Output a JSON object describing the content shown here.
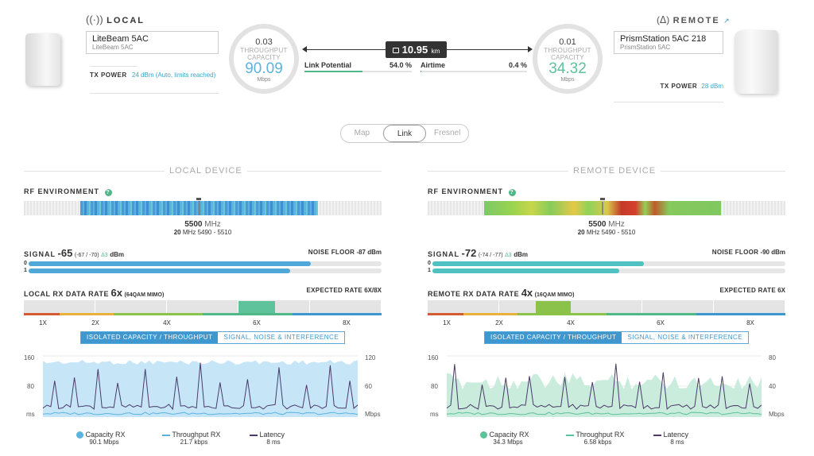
{
  "local": {
    "heading": "LOCAL",
    "device_name": "LiteBeam 5AC",
    "device_model": "LiteBeam 5AC",
    "tx_power_label": "TX POWER",
    "tx_power_value": "24 dBm (Auto, limits reached)"
  },
  "remote": {
    "heading": "REMOTE",
    "device_name": "PrismStation 5AC 218",
    "device_model": "PrismStation 5AC",
    "tx_power_label": "TX POWER",
    "tx_power_value": "28 dBm"
  },
  "gauges": {
    "local": {
      "throughput": "0.03",
      "caption1": "THROUGHPUT",
      "caption2": "CAPACITY",
      "capacity": "90.09",
      "unit": "Mbps"
    },
    "remote": {
      "throughput": "0.01",
      "caption1": "THROUGHPUT",
      "caption2": "CAPACITY",
      "capacity": "34.32",
      "unit": "Mbps"
    }
  },
  "link": {
    "distance": "10.95",
    "distance_unit": "km",
    "potential_label": "Link Potential",
    "potential_value": "54.0",
    "airtime_label": "Airtime",
    "airtime_value": "0.4",
    "percent": "%",
    "potential_fraction": 0.54,
    "airtime_fraction": 0.004
  },
  "tabs": [
    "Map",
    "Link",
    "Fresnel"
  ],
  "panels": {
    "local": {
      "title": "LOCAL DEVICE",
      "rf_label": "RF ENVIRONMENT",
      "freq": "5500",
      "freq_unit": "MHz",
      "width": "20",
      "width_unit": "MHz",
      "range": "5490 - 5510",
      "signal_label": "SIGNAL",
      "signal_value": "-65",
      "signal_chains": "(-67 / -70)",
      "signal_delta": "Δ3",
      "dbm": "dBm",
      "noise_label": "NOISE FLOOR",
      "noise_value": "-87 dBm",
      "chain0_fraction": 0.8,
      "chain1_fraction": 0.74,
      "rx_label": "LOCAL RX DATA RATE",
      "rx_value": "6x",
      "rx_mod": "(64QAM MIMO)",
      "expected_label": "EXPECTED RATE",
      "expected_value": "6X/8X",
      "rate_labels": [
        "1X",
        "2X",
        "4X",
        "6X",
        "8X"
      ],
      "toggle_a": "ISOLATED CAPACITY / THROUGHPUT",
      "toggle_b": "SIGNAL, NOISE & INTERFERENCE",
      "y_left": [
        "160",
        "80",
        "ms"
      ],
      "y_right": [
        "120",
        "60",
        "Mbps"
      ],
      "legend": [
        {
          "name": "Capacity RX",
          "value": "90.1 Mbps"
        },
        {
          "name": "Throughput RX",
          "value": "21.7 kbps"
        },
        {
          "name": "Latency",
          "value": "8 ms"
        }
      ],
      "accent": "#5bb3e0",
      "area": "#c6e6f7"
    },
    "remote": {
      "title": "REMOTE DEVICE",
      "rf_label": "RF ENVIRONMENT",
      "freq": "5500",
      "freq_unit": "MHz",
      "width": "20",
      "width_unit": "MHz",
      "range": "5490 - 5510",
      "signal_label": "SIGNAL",
      "signal_value": "-72",
      "signal_chains": "(-74 / -77)",
      "signal_delta": "Δ3",
      "dbm": "dBm",
      "noise_label": "NOISE FLOOR",
      "noise_value": "-90 dBm",
      "chain0_fraction": 0.6,
      "chain1_fraction": 0.53,
      "rx_label": "REMOTE RX DATA RATE",
      "rx_value": "4x",
      "rx_mod": "(16QAM MIMO)",
      "expected_label": "EXPECTED RATE",
      "expected_value": "6X",
      "rate_labels": [
        "1X",
        "2X",
        "4X",
        "6X",
        "8X"
      ],
      "toggle_a": "ISOLATED CAPACITY / THROUGHPUT",
      "toggle_b": "SIGNAL, NOISE & INTERFERENCE",
      "y_left": [
        "160",
        "80",
        "ms"
      ],
      "y_right": [
        "80",
        "40",
        "Mbps"
      ],
      "legend": [
        {
          "name": "Capacity RX",
          "value": "34.3 Mbps"
        },
        {
          "name": "Throughput RX",
          "value": "6.58 kbps"
        },
        {
          "name": "Latency",
          "value": "8 ms"
        }
      ],
      "accent": "#5ec29b",
      "area": "#c9ecdc"
    }
  },
  "colors": {
    "signal": "#4fa8d8",
    "signal_remote": "#4fc1c0",
    "link_green": "#52b788",
    "accent_blue": "#3f97d0"
  }
}
